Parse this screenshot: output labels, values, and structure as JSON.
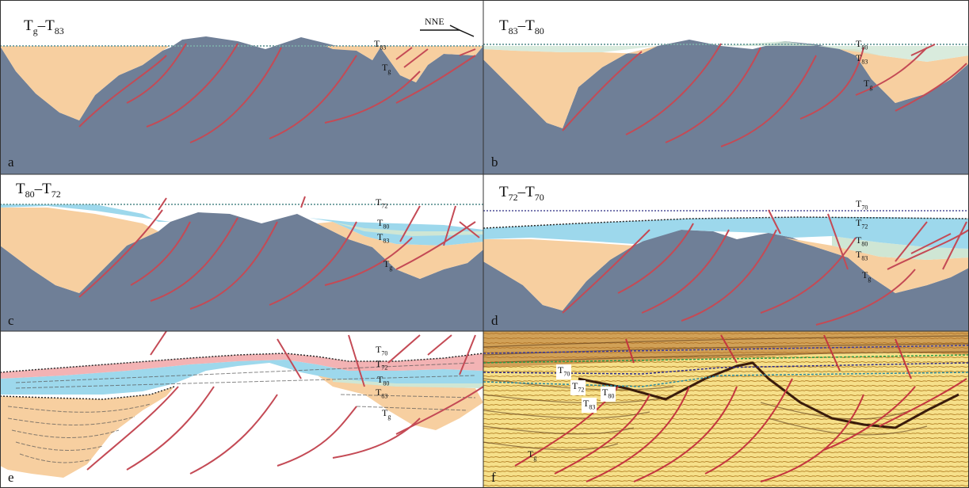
{
  "colors": {
    "basement": "#6f7f97",
    "syn_rift_fill": "#f7cfa0",
    "blue_unit": "#9dd8ec",
    "green_unit": "#cfe6d4",
    "pink_unit": "#f3b3b4",
    "fault": "#c44a55",
    "horizon_dotted": "#2a2a2a",
    "frame": "#333333"
  },
  "orientation_label": "NNE",
  "panels": [
    {
      "letter": "a",
      "title_main": "T",
      "title_sub1": "g",
      "title_sep": "–T",
      "title_sub2": "83",
      "horizons": [
        {
          "base": "T",
          "sub": "83"
        },
        {
          "base": "T",
          "sub": "g"
        }
      ]
    },
    {
      "letter": "b",
      "title_main": "T",
      "title_sub1": "83",
      "title_sep": "–T",
      "title_sub2": "80",
      "horizons": [
        {
          "base": "T",
          "sub": "80"
        },
        {
          "base": "T",
          "sub": "83"
        },
        {
          "base": "T",
          "sub": "g"
        }
      ]
    },
    {
      "letter": "c",
      "title_main": "T",
      "title_sub1": "80",
      "title_sep": "–T",
      "title_sub2": "72",
      "horizons": [
        {
          "base": "T",
          "sub": "72"
        },
        {
          "base": "T",
          "sub": "80"
        },
        {
          "base": "T",
          "sub": "83"
        },
        {
          "base": "T",
          "sub": "g"
        }
      ]
    },
    {
      "letter": "d",
      "title_main": "T",
      "title_sub1": "72",
      "title_sep": "–T",
      "title_sub2": "70",
      "horizons": [
        {
          "base": "T",
          "sub": "70"
        },
        {
          "base": "T",
          "sub": "72"
        },
        {
          "base": "T",
          "sub": "80"
        },
        {
          "base": "T",
          "sub": "83"
        },
        {
          "base": "T",
          "sub": "g"
        }
      ]
    },
    {
      "letter": "e",
      "horizons": [
        {
          "base": "T",
          "sub": "70"
        },
        {
          "base": "T",
          "sub": "72"
        },
        {
          "base": "T",
          "sub": "80"
        },
        {
          "base": "T",
          "sub": "83"
        },
        {
          "base": "T",
          "sub": "g"
        }
      ]
    },
    {
      "letter": "f",
      "horizons": [
        {
          "base": "T",
          "sub": "70"
        },
        {
          "base": "T",
          "sub": "72"
        },
        {
          "base": "T",
          "sub": "80"
        },
        {
          "base": "T",
          "sub": "83"
        },
        {
          "base": "T",
          "sub": "g"
        }
      ]
    }
  ]
}
